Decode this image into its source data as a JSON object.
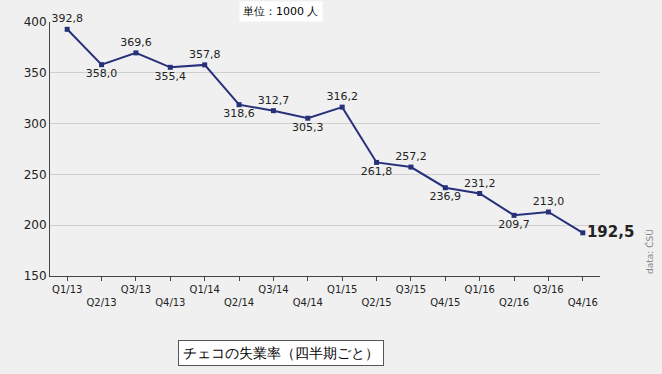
{
  "chart_data": {
    "type": "line",
    "title": "チェコの失業率（四半期ごと）",
    "annotations": [
      "単位：1000 人",
      "data: ČSÚ"
    ],
    "categories": [
      "Q1/13",
      "Q2/13",
      "Q3/13",
      "Q4/13",
      "Q1/14",
      "Q2/14",
      "Q3/14",
      "Q4/14",
      "Q1/15",
      "Q2/15",
      "Q3/15",
      "Q4/15",
      "Q1/16",
      "Q2/16",
      "Q3/16",
      "Q4/16"
    ],
    "values": [
      392.8,
      358.0,
      369.6,
      355.4,
      357.8,
      318.6,
      312.7,
      305.3,
      316.2,
      261.8,
      257.2,
      236.9,
      231.2,
      209.7,
      213.0,
      192.5
    ],
    "value_labels": [
      "392,8",
      "358,0",
      "369,6",
      "355,4",
      "357,8",
      "318,6",
      "312,7",
      "305,3",
      "316,2",
      "261,8",
      "257,2",
      "236,9",
      "231,2",
      "209,7",
      "213,0",
      "192,5"
    ],
    "color": "#27307a",
    "marker": "square",
    "ylim": [
      150,
      400
    ],
    "yticks": [
      150,
      200,
      250,
      300,
      350,
      400
    ],
    "grid": true,
    "data_labels": true
  }
}
